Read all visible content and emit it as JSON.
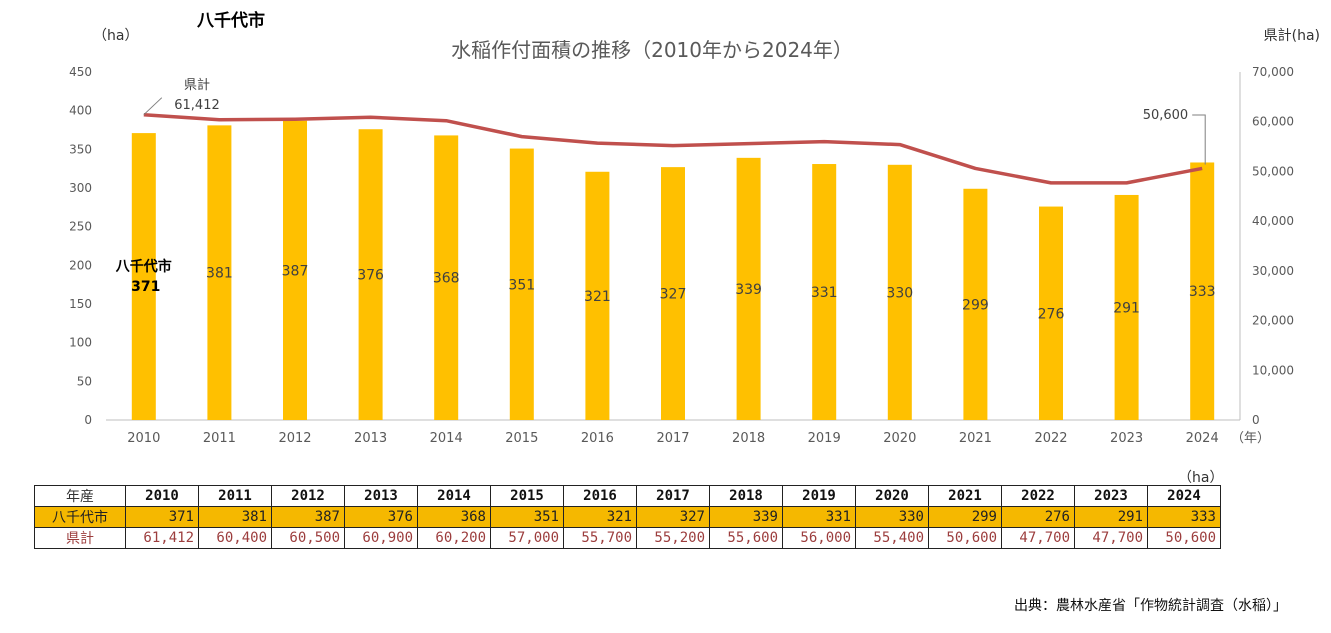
{
  "page_title_left": "八千代市",
  "chart_data": {
    "type": "bar+line",
    "title": "水稲作付面積の推移（2010年から2024年）",
    "left_axis_unit": "（ha）",
    "right_axis_unit": "県計(ha)",
    "x_unit": "（年）",
    "categories": [
      "2010",
      "2011",
      "2012",
      "2013",
      "2014",
      "2015",
      "2016",
      "2017",
      "2018",
      "2019",
      "2020",
      "2021",
      "2022",
      "2023",
      "2024"
    ],
    "bar_series": {
      "name": "八千代市",
      "values": [
        371,
        381,
        387,
        376,
        368,
        351,
        321,
        327,
        339,
        331,
        330,
        299,
        276,
        291,
        333
      ],
      "color": "#ffc000",
      "axis": "left"
    },
    "line_series": {
      "name": "県計",
      "values": [
        61412,
        60400,
        60500,
        60900,
        60200,
        57000,
        55700,
        55200,
        55600,
        56000,
        55400,
        50600,
        47700,
        47700,
        50600
      ],
      "color": "#c0504d",
      "axis": "right"
    },
    "left_ylim": [
      0,
      450
    ],
    "left_ticks": [
      "0",
      "50",
      "100",
      "150",
      "200",
      "250",
      "300",
      "350",
      "400",
      "450"
    ],
    "right_ylim": [
      0,
      70000
    ],
    "right_ticks": [
      "0",
      "10,000",
      "20,000",
      "30,000",
      "40,000",
      "50,000",
      "60,000",
      "70,000"
    ],
    "bar_labels": [
      "371",
      "381",
      "387",
      "376",
      "368",
      "351",
      "321",
      "327",
      "339",
      "331",
      "330",
      "299",
      "276",
      "291",
      "333"
    ],
    "annotations": {
      "first_bar_city": "八千代市",
      "first_bar_value": "371",
      "line_start_name": "県計",
      "line_start_value": "61,412",
      "line_end_value": "50,600"
    }
  },
  "table": {
    "unit": "（ha）",
    "header_label": "年産",
    "years": [
      "2010",
      "2011",
      "2012",
      "2013",
      "2014",
      "2015",
      "2016",
      "2017",
      "2018",
      "2019",
      "2020",
      "2021",
      "2022",
      "2023",
      "2024"
    ],
    "city_label": "八千代市",
    "city_values": [
      "371",
      "381",
      "387",
      "376",
      "368",
      "351",
      "321",
      "327",
      "339",
      "331",
      "330",
      "299",
      "276",
      "291",
      "333"
    ],
    "pref_label": "県計",
    "pref_values": [
      "61,412",
      "60,400",
      "60,500",
      "60,900",
      "60,200",
      "57,000",
      "55,700",
      "55,200",
      "55,600",
      "56,000",
      "55,400",
      "50,600",
      "47,700",
      "47,700",
      "50,600"
    ]
  },
  "source": "出典：農林水産省「作物統計調査（水稲）」"
}
